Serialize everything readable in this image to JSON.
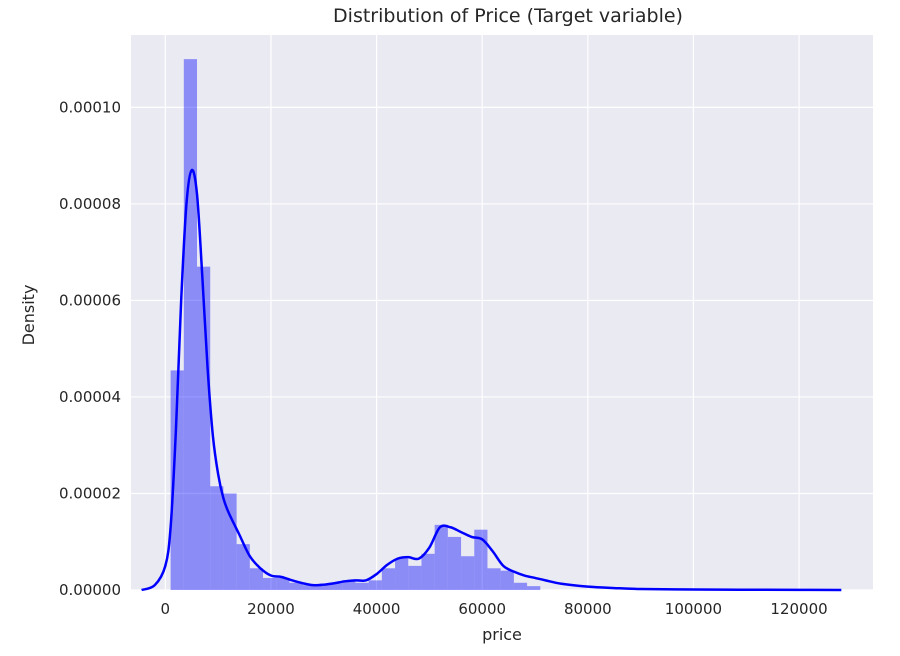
{
  "colors": {
    "plot_background": "#eaeaf2",
    "grid": "#ffffff",
    "bars": "#0000ff",
    "bar_opacity": 0.4,
    "kde_line": "#0000ff"
  },
  "chart_data": {
    "type": "bar",
    "subtype": "histogram-with-kde",
    "title": "Distribution of Price (Target variable)",
    "xlabel": "price",
    "ylabel": "Density",
    "xlim": [
      -6500,
      134000
    ],
    "ylim": [
      0,
      0.000115
    ],
    "xticks": [
      0,
      20000,
      40000,
      60000,
      80000,
      100000,
      120000
    ],
    "xtick_labels": [
      "0",
      "20000",
      "40000",
      "60000",
      "80000",
      "100000",
      "120000"
    ],
    "yticks": [
      0,
      2e-05,
      4e-05,
      6e-05,
      8e-05,
      0.0001
    ],
    "ytick_labels": [
      "0.00000",
      "0.00002",
      "0.00004",
      "0.00006",
      "0.00008",
      "0.00010"
    ],
    "grid": true,
    "histogram": {
      "bin_start": 1000,
      "bin_width": 2500,
      "densities": [
        4.55e-05,
        0.00011,
        6.7e-05,
        2.15e-05,
        2e-05,
        9.5e-06,
        4.5e-06,
        2.5e-06,
        2.5e-06,
        1.5e-06,
        1e-06,
        1e-06,
        1.5e-06,
        2e-06,
        1.5e-06,
        2e-06,
        4.5e-06,
        6.5e-06,
        5e-06,
        7.5e-06,
        1.35e-05,
        1.1e-05,
        7e-06,
        1.25e-05,
        4.5e-06,
        4e-06,
        1.5e-06,
        8e-07
      ]
    },
    "kde": {
      "x": [
        -4500,
        -2000,
        0,
        1000,
        2000,
        3000,
        4000,
        5000,
        6000,
        7000,
        8000,
        9000,
        10000,
        11000,
        12000,
        14000,
        16000,
        18000,
        20000,
        22000,
        24000,
        26000,
        28000,
        30000,
        32000,
        34000,
        36000,
        38000,
        40000,
        42000,
        44000,
        46000,
        48000,
        50000,
        52000,
        54000,
        56000,
        58000,
        60000,
        62000,
        64000,
        66000,
        68000,
        70000,
        72000,
        75000,
        80000,
        85000,
        90000,
        100000,
        110000,
        120000,
        128000
      ],
      "y": [
        0,
        1e-06,
        5e-06,
        1.3e-05,
        3.3e-05,
        6e-05,
        8e-05,
        8.7e-05,
        8.2e-05,
        6.5e-05,
        4.6e-05,
        3.2e-05,
        2.4e-05,
        1.9e-05,
        1.6e-05,
        1.15e-05,
        7e-06,
        4.5e-06,
        3e-06,
        2.7e-06,
        2e-06,
        1.4e-06,
        1e-06,
        1.1e-06,
        1.4e-06,
        1.8e-06,
        2e-06,
        2e-06,
        3.3e-06,
        5.2e-06,
        6.5e-06,
        6.8e-06,
        6.5e-06,
        8.8e-06,
        1.3e-05,
        1.3e-05,
        1.2e-05,
        1.1e-05,
        1.05e-05,
        8e-06,
        5e-06,
        3.8e-06,
        3e-06,
        2.5e-06,
        2e-06,
        1.3e-06,
        7e-07,
        4e-07,
        2e-07,
        1e-07,
        5e-08,
        3e-08,
        0
      ]
    }
  }
}
